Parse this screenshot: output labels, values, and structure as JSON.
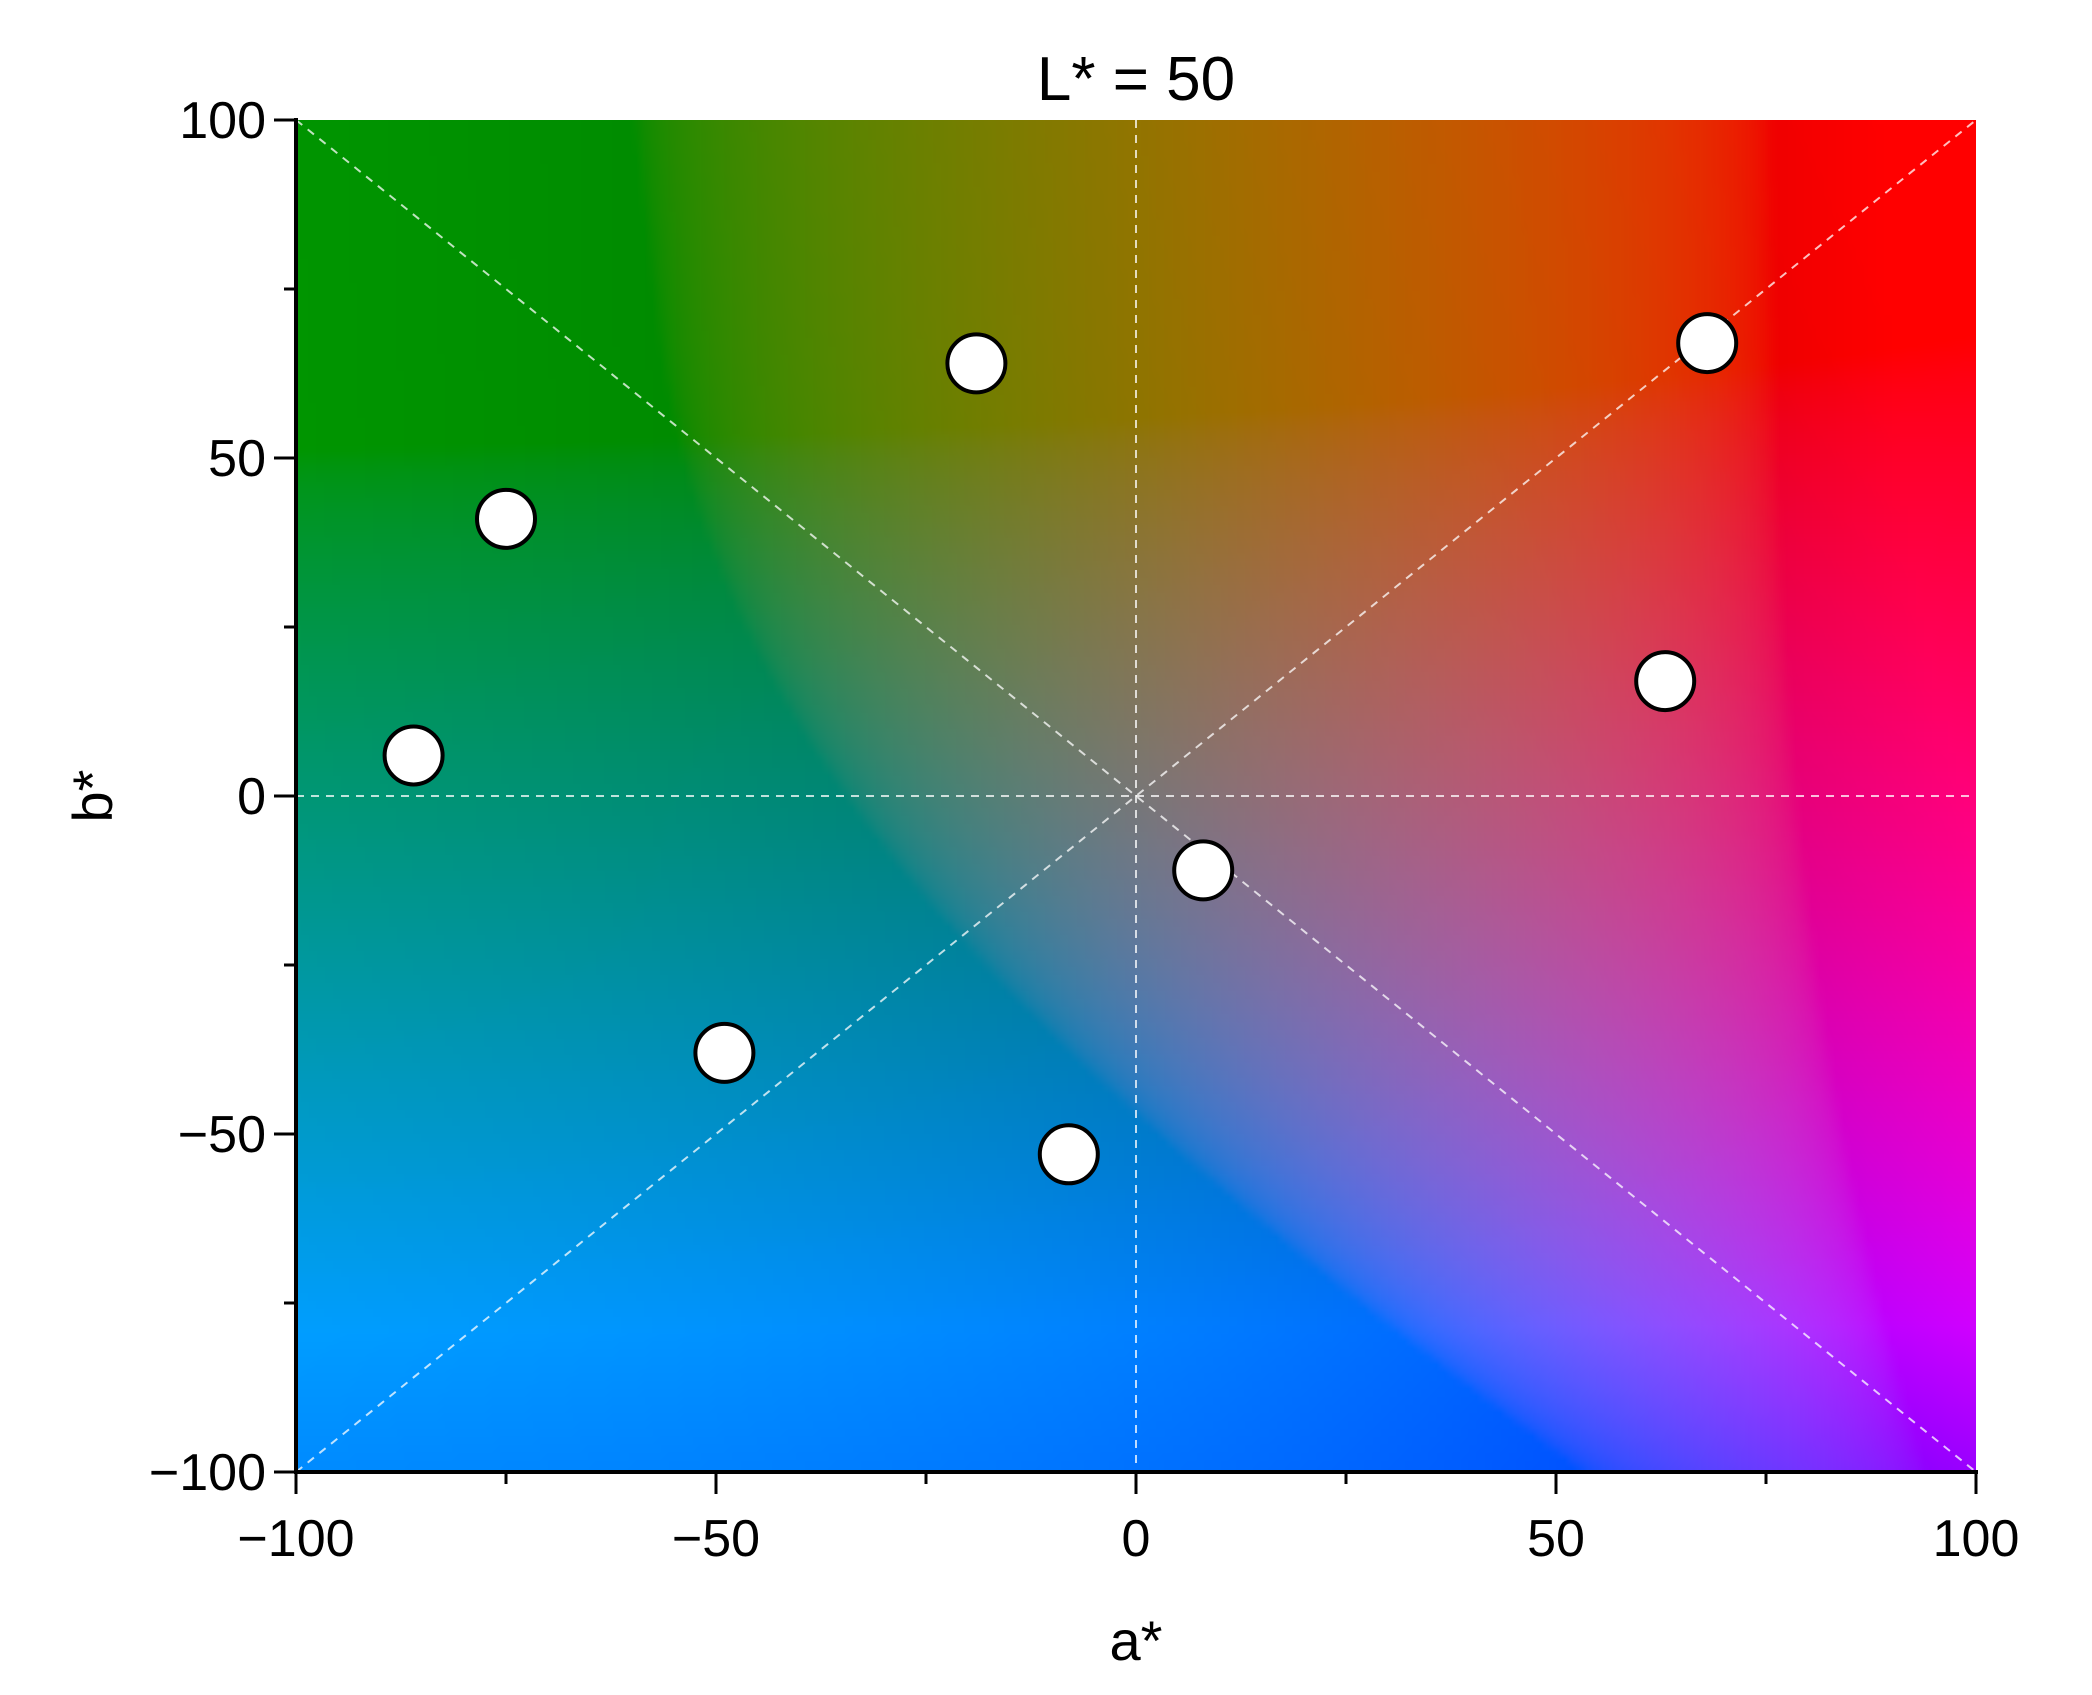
{
  "chart_data": {
    "type": "scatter",
    "title": "L* = 50",
    "xlabel": "a*",
    "ylabel": "b*",
    "xlim": [
      -100,
      100
    ],
    "ylim": [
      -100,
      100
    ],
    "x_ticks": [
      -100,
      -50,
      0,
      50,
      100
    ],
    "y_ticks": [
      -100,
      -50,
      0,
      50,
      100
    ],
    "x_tick_labels": [
      "−100",
      "−50",
      "0",
      "50",
      "100"
    ],
    "y_tick_labels": [
      "−100",
      "−50",
      "0",
      "50",
      "100"
    ],
    "minor_tick_step": 25,
    "background": "CIELAB a*b* color plane at L* = 50",
    "reference_lines": "dashed lines along a* = 0, b* = 0 and the two diagonals",
    "grid": false,
    "legend": "none",
    "marker_fill": "#ffffff",
    "marker_edge": "#000000",
    "points": [
      {
        "x": 68,
        "y": 67
      },
      {
        "x": -19,
        "y": 64
      },
      {
        "x": -75,
        "y": 41
      },
      {
        "x": 63,
        "y": 17
      },
      {
        "x": -86,
        "y": 6
      },
      {
        "x": 8,
        "y": -11
      },
      {
        "x": -49,
        "y": -38
      },
      {
        "x": -8,
        "y": -53
      }
    ]
  }
}
